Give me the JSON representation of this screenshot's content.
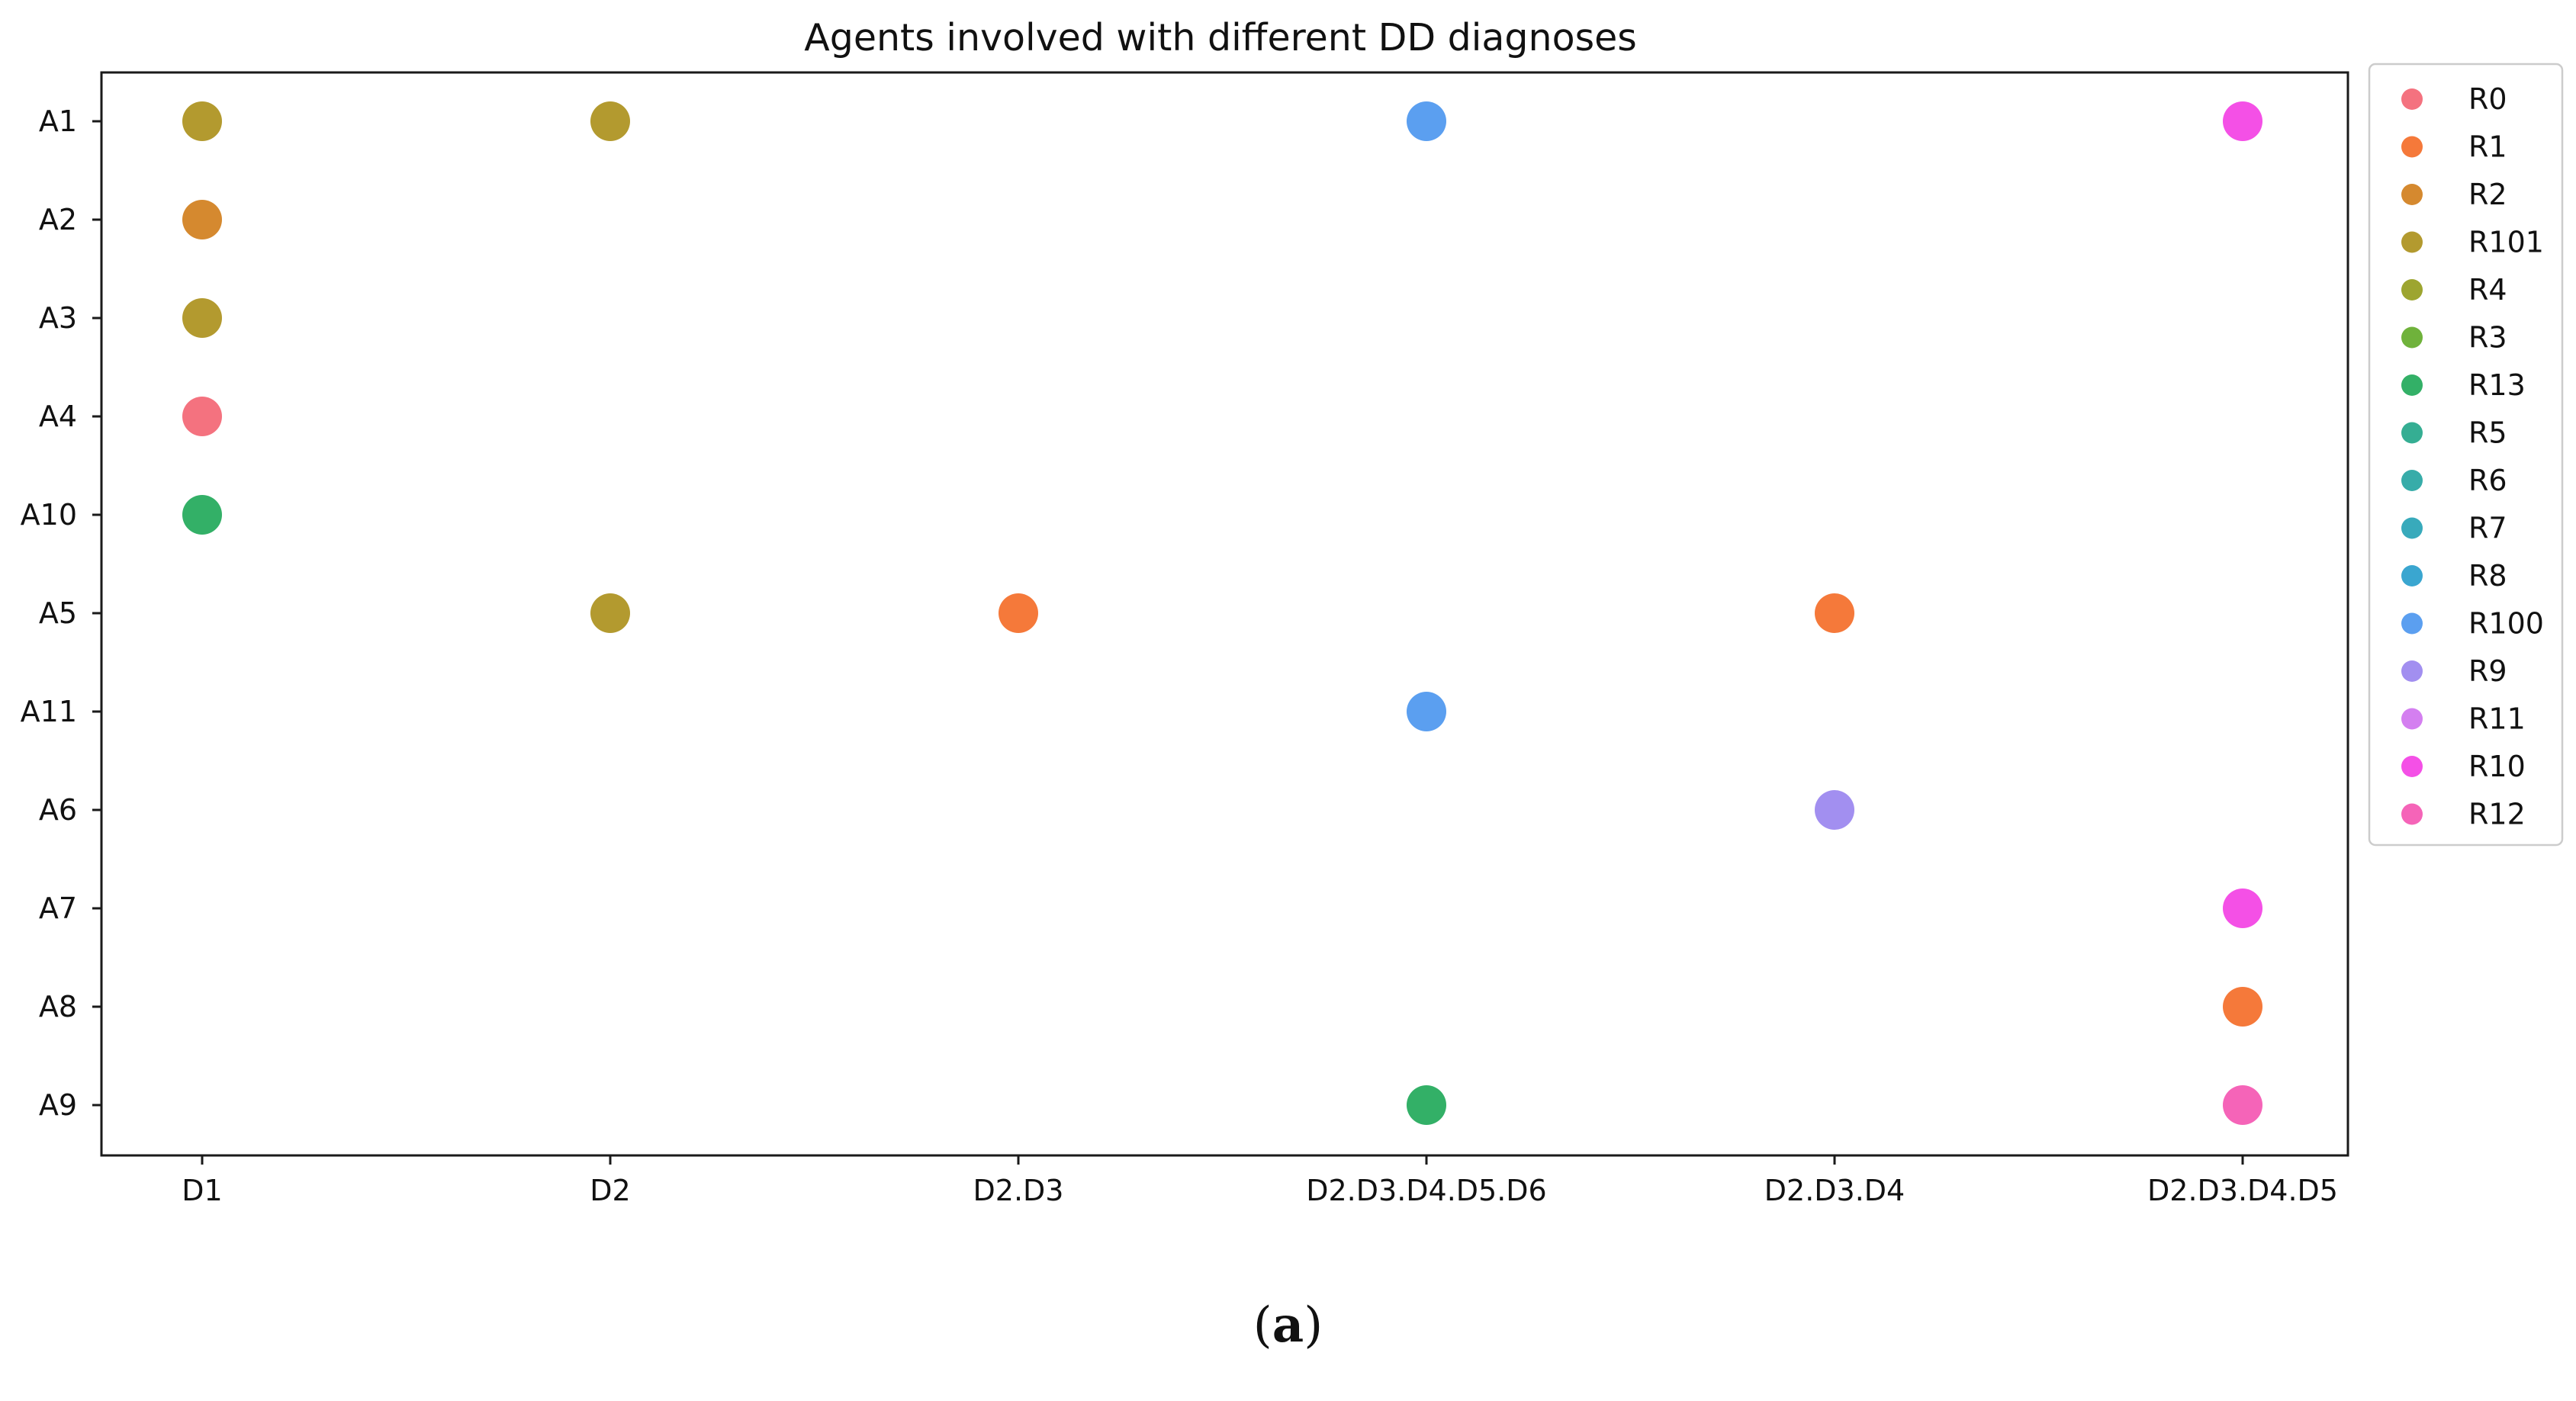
{
  "caption": {
    "open": "(",
    "letter": "a",
    "close": ")"
  },
  "chart_data": {
    "type": "scatter",
    "title": "Agents involved with different DD diagnoses",
    "xlabel": "",
    "ylabel": "",
    "x_categories": [
      "D1",
      "D2",
      "D2.D3",
      "D2.D3.D4.D5.D6",
      "D2.D3.D4",
      "D2.D3.D4.D5"
    ],
    "y_categories": [
      "A1",
      "A2",
      "A3",
      "A4",
      "A10",
      "A5",
      "A11",
      "A6",
      "A7",
      "A8",
      "A9"
    ],
    "legend_position": "outside-right-top",
    "grid": false,
    "legend": [
      {
        "name": "R0",
        "color": "#f4727f"
      },
      {
        "name": "R1",
        "color": "#f5793a"
      },
      {
        "name": "R2",
        "color": "#d5892f"
      },
      {
        "name": "R101",
        "color": "#b39a2f"
      },
      {
        "name": "R4",
        "color": "#9da530"
      },
      {
        "name": "R3",
        "color": "#6fb23b"
      },
      {
        "name": "R13",
        "color": "#33b067"
      },
      {
        "name": "R5",
        "color": "#35ae93"
      },
      {
        "name": "R6",
        "color": "#37aca9"
      },
      {
        "name": "R7",
        "color": "#38aabb"
      },
      {
        "name": "R8",
        "color": "#3aa6d0"
      },
      {
        "name": "R100",
        "color": "#5b9ff0"
      },
      {
        "name": "R9",
        "color": "#a28ff0"
      },
      {
        "name": "R11",
        "color": "#d47ff0"
      },
      {
        "name": "R10",
        "color": "#f450e6"
      },
      {
        "name": "R12",
        "color": "#f564b8"
      }
    ],
    "points": [
      {
        "x": "D1",
        "y": "A1",
        "series": "R101"
      },
      {
        "x": "D1",
        "y": "A2",
        "series": "R2"
      },
      {
        "x": "D1",
        "y": "A3",
        "series": "R101"
      },
      {
        "x": "D1",
        "y": "A4",
        "series": "R0"
      },
      {
        "x": "D1",
        "y": "A10",
        "series": "R13"
      },
      {
        "x": "D2",
        "y": "A1",
        "series": "R101"
      },
      {
        "x": "D2",
        "y": "A5",
        "series": "R101"
      },
      {
        "x": "D2.D3",
        "y": "A5",
        "series": "R1"
      },
      {
        "x": "D2.D3.D4.D5.D6",
        "y": "A1",
        "series": "R100"
      },
      {
        "x": "D2.D3.D4.D5.D6",
        "y": "A11",
        "series": "R100"
      },
      {
        "x": "D2.D3.D4.D5.D6",
        "y": "A9",
        "series": "R13"
      },
      {
        "x": "D2.D3.D4",
        "y": "A5",
        "series": "R1"
      },
      {
        "x": "D2.D3.D4",
        "y": "A6",
        "series": "R9"
      },
      {
        "x": "D2.D3.D4.D5",
        "y": "A1",
        "series": "R10"
      },
      {
        "x": "D2.D3.D4.D5",
        "y": "A7",
        "series": "R10"
      },
      {
        "x": "D2.D3.D4.D5",
        "y": "A8",
        "series": "R1"
      },
      {
        "x": "D2.D3.D4.D5",
        "y": "A9",
        "series": "R12"
      }
    ]
  }
}
